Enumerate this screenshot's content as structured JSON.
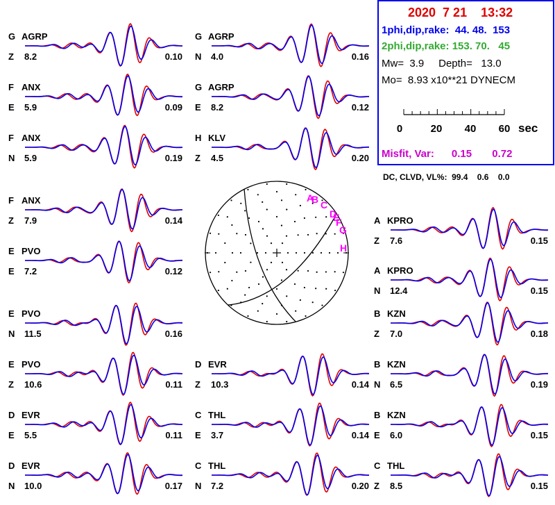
{
  "header": {
    "date_time": "2020  7 21    13:32",
    "plane1": "1phi,dip,rake:  44. 48.  153",
    "plane2": "2phi,dip,rake: 153. 70.   45",
    "mw_depth": "Mw=  3.9     Depth=   13.0",
    "moment": "Mo=  8.93 x10**21 DYNECM",
    "time_scale": {
      "ticks": [
        "0",
        "20",
        "40",
        "60"
      ],
      "unit": "sec"
    },
    "misfit": "Misfit, Var:      0.15       0.72",
    "dc_clvd": "DC, CLVD, VL%:  99.4    0.6    0.0"
  },
  "colors": {
    "observed": "#e00000",
    "synthetic": "#0000ee",
    "header_red": "#e00000",
    "header_blue": "#0000ee",
    "header_green": "#33aa33",
    "misfit": "#cc00cc",
    "frame": "#0000ee",
    "station_labels": "#ff00ff"
  },
  "traces": [
    {
      "group": "G",
      "station": "AGRP",
      "comp": "Z",
      "dist": "8.2",
      "amp": "0.10"
    },
    {
      "group": "F",
      "station": "ANX",
      "comp": "E",
      "dist": "5.9",
      "amp": "0.09"
    },
    {
      "group": "F",
      "station": "ANX",
      "comp": "N",
      "dist": "5.9",
      "amp": "0.19"
    },
    {
      "group": "F",
      "station": "ANX",
      "comp": "Z",
      "dist": "7.9",
      "amp": "0.14"
    },
    {
      "group": "E",
      "station": "PVO",
      "comp": "E",
      "dist": "7.2",
      "amp": "0.12"
    },
    {
      "group": "E",
      "station": "PVO",
      "comp": "N",
      "dist": "11.5",
      "amp": "0.16"
    },
    {
      "group": "E",
      "station": "PVO",
      "comp": "Z",
      "dist": "10.6",
      "amp": "0.11"
    },
    {
      "group": "D",
      "station": "EVR",
      "comp": "E",
      "dist": "5.5",
      "amp": "0.11"
    },
    {
      "group": "D",
      "station": "EVR",
      "comp": "N",
      "dist": "10.0",
      "amp": "0.17"
    },
    {
      "group": "G",
      "station": "AGRP",
      "comp": "N",
      "dist": "4.0",
      "amp": "0.16"
    },
    {
      "group": "G",
      "station": "AGRP",
      "comp": "E",
      "dist": "8.2",
      "amp": "0.12"
    },
    {
      "group": "H",
      "station": "KLV",
      "comp": "Z",
      "dist": "4.5",
      "amp": "0.20"
    },
    {
      "group": "D",
      "station": "EVR",
      "comp": "Z",
      "dist": "10.3",
      "amp": "0.14"
    },
    {
      "group": "C",
      "station": "THL",
      "comp": "E",
      "dist": "3.7",
      "amp": "0.14"
    },
    {
      "group": "C",
      "station": "THL",
      "comp": "N",
      "dist": "7.2",
      "amp": "0.20"
    },
    {
      "group": "A",
      "station": "KPRO",
      "comp": "Z",
      "dist": "7.6",
      "amp": "0.15"
    },
    {
      "group": "A",
      "station": "KPRO",
      "comp": "N",
      "dist": "12.4",
      "amp": "0.15"
    },
    {
      "group": "B",
      "station": "KZN",
      "comp": "Z",
      "dist": "7.0",
      "amp": "0.18"
    },
    {
      "group": "B",
      "station": "KZN",
      "comp": "N",
      "dist": "6.5",
      "amp": "0.19"
    },
    {
      "group": "B",
      "station": "KZN",
      "comp": "E",
      "dist": "6.0",
      "amp": "0.15"
    },
    {
      "group": "C",
      "station": "THL",
      "comp": "Z",
      "dist": "8.5",
      "amp": "0.15"
    }
  ],
  "beachball_stations": [
    "A",
    "B",
    "C",
    "D",
    "E",
    "F",
    "G",
    "H"
  ]
}
